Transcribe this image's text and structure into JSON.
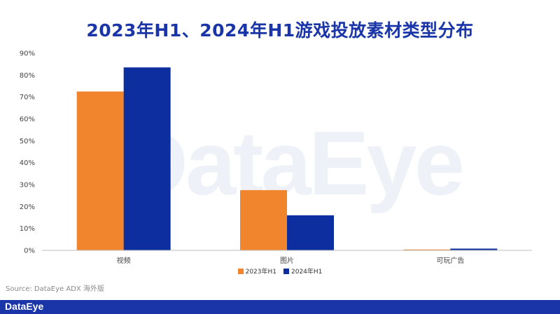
{
  "watermark": "DataEye",
  "source": "Source: DataEye ADX 海外版",
  "footer_logo": "DataEye",
  "chart_data": {
    "type": "bar",
    "title": "2023年H1、2024年H1游戏投放素材类型分布",
    "categories": [
      "视频",
      "图片",
      "可玩广告"
    ],
    "series": [
      {
        "name": "2023年H1",
        "values": [
          72.5,
          27.5,
          0.4
        ],
        "color": "#f0852d"
      },
      {
        "name": "2024年H1",
        "values": [
          83.5,
          16.0,
          0.8
        ],
        "color": "#0d2e9e"
      }
    ],
    "yticks": [
      "0%",
      "10%",
      "20%",
      "30%",
      "40%",
      "50%",
      "60%",
      "70%",
      "80%",
      "90%"
    ],
    "ylim": [
      0,
      90
    ],
    "legend_position": "bottom",
    "grid": false
  }
}
